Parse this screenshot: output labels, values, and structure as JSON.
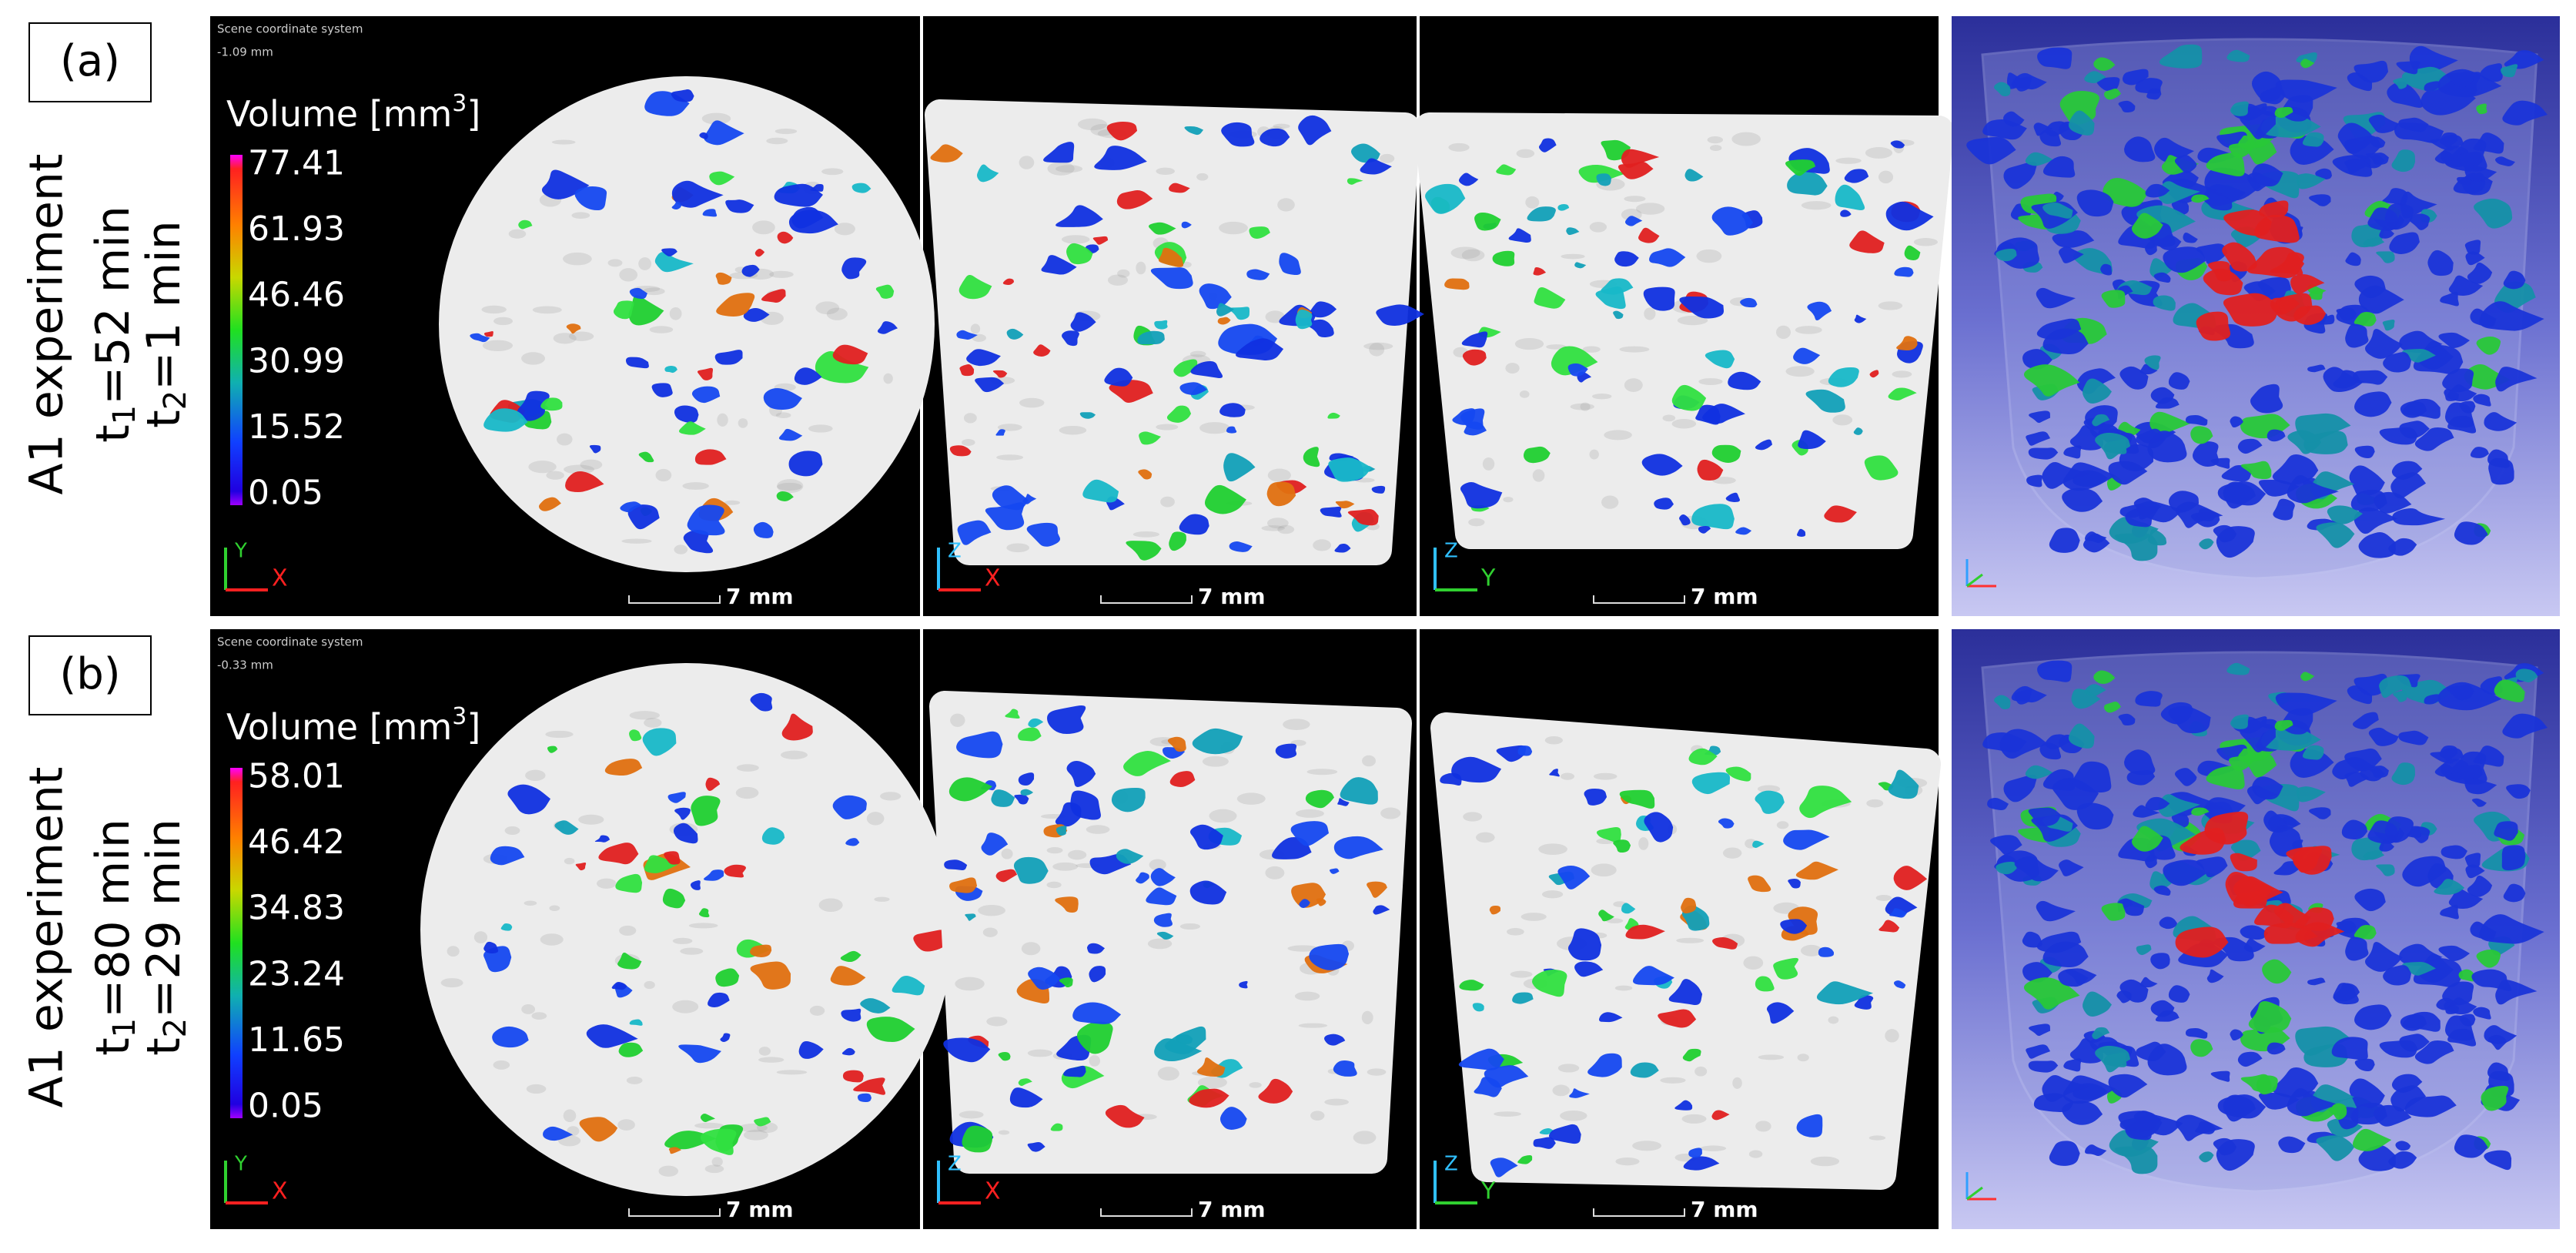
{
  "rows": [
    {
      "label": "(a)",
      "experiment": "A1 experiment",
      "t1": {
        "symbol": "t",
        "subscript": "1",
        "value": "=52 min"
      },
      "t2": {
        "symbol": "t",
        "subscript": "2",
        "value": "=1 min"
      },
      "scene": "Scene coordinate system",
      "depth": "-1.09 mm",
      "legend": {
        "title": "Volume [mm",
        "superscript": "3",
        "close": "]",
        "ticks": [
          77.41,
          61.93,
          46.46,
          30.99,
          15.52,
          0.05
        ]
      },
      "panels": [
        {
          "vertical": "Y",
          "horizontal": "X",
          "scale_bar": "7 mm"
        },
        {
          "vertical": "Z",
          "horizontal": "X",
          "scale_bar": "7 mm"
        },
        {
          "vertical": "Z",
          "horizontal": "Y",
          "scale_bar": "7 mm"
        }
      ]
    },
    {
      "label": "(b)",
      "experiment": "A1 experiment",
      "t1": {
        "symbol": "t",
        "subscript": "1",
        "value": "=80 min"
      },
      "t2": {
        "symbol": "t",
        "subscript": "2",
        "value": "=29 min"
      },
      "scene": "Scene coordinate system",
      "depth": "-0.33 mm",
      "legend": {
        "title": "Volume [mm",
        "superscript": "3",
        "close": "]",
        "ticks": [
          58.01,
          46.42,
          34.83,
          23.24,
          11.65,
          0.05
        ]
      },
      "panels": [
        {
          "vertical": "Y",
          "horizontal": "X",
          "scale_bar": "7 mm"
        },
        {
          "vertical": "Z",
          "horizontal": "X",
          "scale_bar": "7 mm"
        },
        {
          "vertical": "Z",
          "horizontal": "Y",
          "scale_bar": "7 mm"
        }
      ]
    }
  ]
}
